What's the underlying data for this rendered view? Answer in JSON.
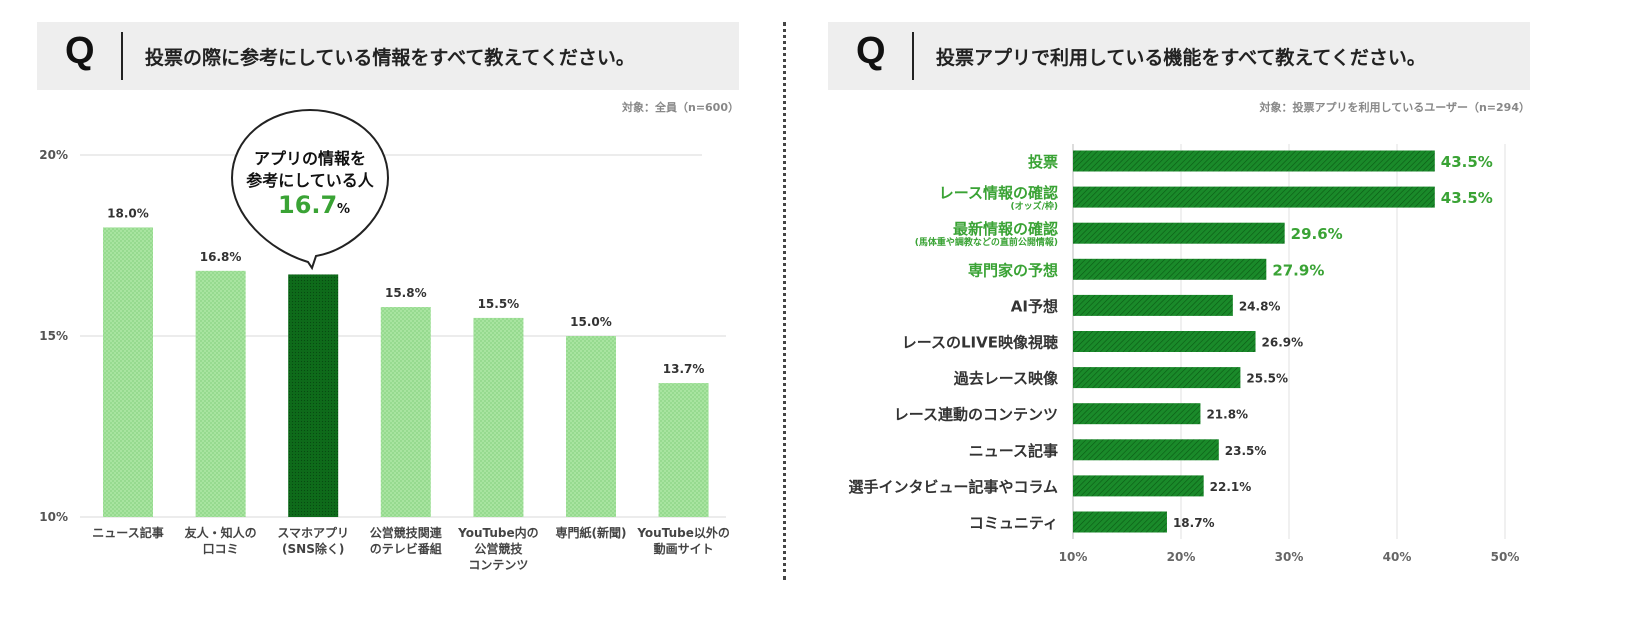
{
  "left": {
    "q_mark": "Q",
    "question": "投票の際に参考にしている情報をすべて教えてください。",
    "note": "対象：全員（n=600）",
    "callout": {
      "line1": "アプリの情報を",
      "line2": "参考にしている人",
      "value": "16.7",
      "unit": "%"
    }
  },
  "right": {
    "q_mark": "Q",
    "question": "投票アプリで利用している機能をすべて教えてください。",
    "note": "対象：投票アプリを利用しているユーザー（n=294）"
  },
  "chart_data": [
    {
      "type": "bar",
      "orientation": "vertical",
      "title": "投票の際に参考にしている情報をすべて教えてください。",
      "ylim": [
        10,
        20
      ],
      "yticks": [
        {
          "value": 10,
          "label": "10%"
        },
        {
          "value": 15,
          "label": "15%"
        },
        {
          "value": 20,
          "label": "20%"
        }
      ],
      "categories": [
        {
          "lines": [
            "ニュース記事"
          ],
          "value": 18.0,
          "label": "18.0%",
          "highlight": false
        },
        {
          "lines": [
            "友人・知人の",
            "口コミ"
          ],
          "value": 16.8,
          "label": "16.8%",
          "highlight": false
        },
        {
          "lines": [
            "スマホアプリ",
            "(SNS除く)"
          ],
          "value": 16.7,
          "label": "",
          "highlight": true
        },
        {
          "lines": [
            "公営競技関連",
            "のテレビ番組"
          ],
          "value": 15.8,
          "label": "15.8%",
          "highlight": false
        },
        {
          "lines": [
            "YouTube内の",
            "公営競技",
            "コンテンツ"
          ],
          "value": 15.5,
          "label": "15.5%",
          "highlight": false
        },
        {
          "lines": [
            "専門紙(新聞)"
          ],
          "value": 15.0,
          "label": "15.0%",
          "highlight": false
        },
        {
          "lines": [
            "YouTube以外の",
            "動画サイト"
          ],
          "value": 13.7,
          "label": "13.7%",
          "highlight": false
        }
      ],
      "colors": {
        "bar": "#a8e4a0",
        "highlight": "#0e6b1a",
        "value_text": "#333333"
      }
    },
    {
      "type": "bar",
      "orientation": "horizontal",
      "title": "投票アプリで利用している機能をすべて教えてください。",
      "xlim": [
        10,
        50
      ],
      "xticks": [
        {
          "value": 10,
          "label": "10%"
        },
        {
          "value": 20,
          "label": "20%"
        },
        {
          "value": 30,
          "label": "30%"
        },
        {
          "value": 40,
          "label": "40%"
        },
        {
          "value": 50,
          "label": "50%"
        }
      ],
      "categories": [
        {
          "label": "投票",
          "sub": "",
          "value": 43.5,
          "value_label": "43.5%",
          "highlight": true
        },
        {
          "label": "レース情報の確認",
          "sub": "(オッズ/枠)",
          "value": 43.5,
          "value_label": "43.5%",
          "highlight": true
        },
        {
          "label": "最新情報の確認",
          "sub": "(馬体重や調教などの直前公開情報)",
          "value": 29.6,
          "value_label": "29.6%",
          "highlight": true
        },
        {
          "label": "専門家の予想",
          "sub": "",
          "value": 27.9,
          "value_label": "27.9%",
          "highlight": true
        },
        {
          "label": "AI予想",
          "sub": "",
          "value": 24.8,
          "value_label": "24.8%",
          "highlight": false
        },
        {
          "label": "レースのLIVE映像視聴",
          "sub": "",
          "value": 26.9,
          "value_label": "26.9%",
          "highlight": false
        },
        {
          "label": "過去レース映像",
          "sub": "",
          "value": 25.5,
          "value_label": "25.5%",
          "highlight": false
        },
        {
          "label": "レース連動のコンテンツ",
          "sub": "",
          "value": 21.8,
          "value_label": "21.8%",
          "highlight": false
        },
        {
          "label": "ニュース記事",
          "sub": "",
          "value": 23.5,
          "value_label": "23.5%",
          "highlight": false
        },
        {
          "label": "選手インタビュー記事やコラム",
          "sub": "",
          "value": 22.1,
          "value_label": "22.1%",
          "highlight": false
        },
        {
          "label": "コミュニティ",
          "sub": "",
          "value": 18.7,
          "value_label": "18.7%",
          "highlight": false
        }
      ],
      "colors": {
        "bar": "#1a8a2a",
        "highlight_text": "#3aa335",
        "text": "#333333"
      }
    }
  ]
}
